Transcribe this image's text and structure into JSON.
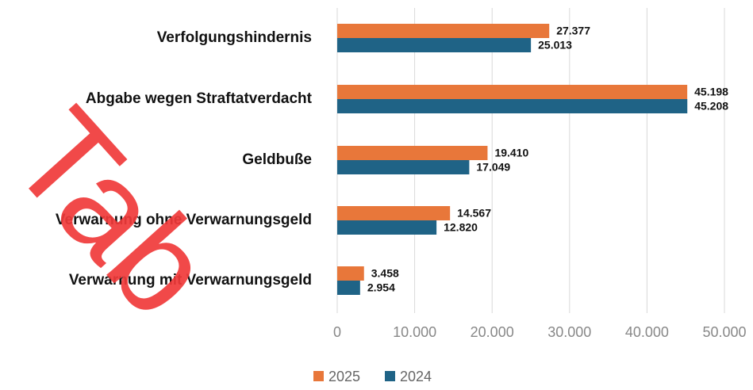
{
  "chart_data": {
    "type": "bar",
    "orientation": "horizontal",
    "categories": [
      "Verfolgungshindernis",
      "Abgabe wegen Straftatverdacht",
      "Geldbuße",
      "Verwarnung ohne Verwarnungsgeld",
      "Verwarnung mit Verwarnungsgeld"
    ],
    "series": [
      {
        "name": "2025",
        "color": "#e8773a",
        "values": [
          27377,
          45198,
          19410,
          14567,
          3458
        ],
        "value_labels": [
          "27.377",
          "45.198",
          "19.410",
          "14.567",
          "3.458"
        ]
      },
      {
        "name": "2024",
        "color": "#1f6386",
        "values": [
          25013,
          45208,
          17049,
          12820,
          2954
        ],
        "value_labels": [
          "25.013",
          "45.208",
          "17.049",
          "12.820",
          "2.954"
        ]
      }
    ],
    "xlim": [
      0,
      50000
    ],
    "xticks": [
      0,
      {
        "value": 10000,
        "label": "10.000"
      },
      {
        "value": 20000,
        "label": "20.000"
      },
      {
        "value": 30000,
        "label": "30.000"
      },
      {
        "value": 40000,
        "label": "40.000"
      },
      {
        "value": 50000,
        "label": "50.000"
      }
    ],
    "grid": true,
    "legend": "bottom",
    "watermark": "Tab"
  }
}
